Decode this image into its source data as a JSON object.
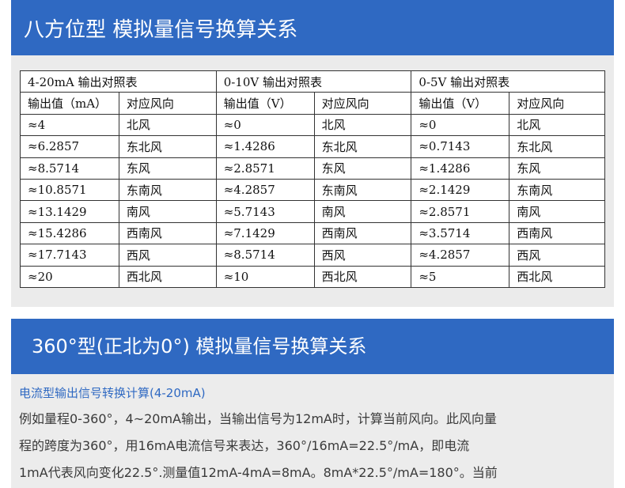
{
  "section1": {
    "title": "八方位型 模拟量信号换算关系",
    "table": {
      "group_headers": [
        "4-20mA 输出对照表",
        "0-10V 输出对照表",
        "0-5V 输出对照表"
      ],
      "col_headers": [
        "输出值（mA）",
        "对应风向",
        "输出值（V）",
        "对应风向",
        "输出值（V）",
        "对应风向"
      ],
      "rows": [
        [
          "≈4",
          "北风",
          "≈0",
          "北风",
          "≈0",
          "北风"
        ],
        [
          "≈6.2857",
          "东北风",
          "≈1.4286",
          "东北风",
          "≈0.7143",
          "东北风"
        ],
        [
          "≈8.5714",
          "东风",
          "≈2.8571",
          "东风",
          "≈1.4286",
          "东风"
        ],
        [
          "≈10.8571",
          "东南风",
          "≈4.2857",
          "东南风",
          "≈2.1429",
          "东南风"
        ],
        [
          "≈13.1429",
          "南风",
          "≈5.7143",
          "南风",
          "≈2.8571",
          "南风"
        ],
        [
          "≈15.4286",
          "西南风",
          "≈7.1429",
          "西南风",
          "≈3.5714",
          "西南风"
        ],
        [
          "≈17.7143",
          "西风",
          "≈8.5714",
          "西风",
          "≈4.2857",
          "西风"
        ],
        [
          "≈20",
          "西北风",
          "≈10",
          "西北风",
          "≈5",
          "西北风"
        ]
      ]
    }
  },
  "section2": {
    "title": "360°型(正北为0°) 模拟量信号换算关系",
    "subtitle": "电流型输出信号转换计算(4-20mA)",
    "lines": [
      "例如量程0-360°，4~20mA输出，当输出信号为12mA时，计算当前风向。此风向量",
      "程的跨度为360°，用16mA电流信号来表达，360°/16mA=22.5°/mA，即电流",
      "1mA代表风向变化22.5°.测量值12mA-4mA=8mA。8mA*22.5°/mA=180°。当前"
    ]
  },
  "colors": {
    "banner": "#2f69c2",
    "panel": "#ebebeb",
    "subtitle": "#2f69c2"
  }
}
